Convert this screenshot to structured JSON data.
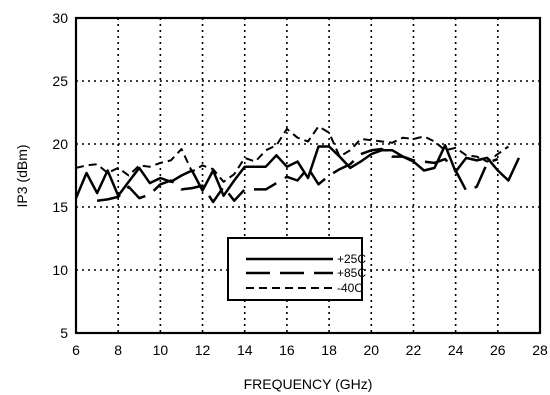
{
  "chart_data": {
    "type": "line",
    "title": "",
    "xlabel": "FREQUENCY (GHz)",
    "ylabel": "IP3 (dBm)",
    "xlim": [
      6,
      28
    ],
    "ylim": [
      5,
      30
    ],
    "xticks": [
      6,
      8,
      10,
      12,
      14,
      16,
      18,
      20,
      22,
      24,
      26,
      28
    ],
    "yticks": [
      5,
      10,
      15,
      20,
      25,
      30
    ],
    "grid": true,
    "legend_position": "lower-center",
    "series": [
      {
        "name": "+25C",
        "line_style": "solid",
        "color": "#000000",
        "points": [
          [
            6,
            15.7
          ],
          [
            6.5,
            17.7
          ],
          [
            7,
            16.1
          ],
          [
            7.5,
            17.9
          ],
          [
            8,
            15.9
          ],
          [
            8.5,
            17.0
          ],
          [
            9,
            18.1
          ],
          [
            9.5,
            16.9
          ],
          [
            10,
            17.3
          ],
          [
            10.5,
            17.0
          ],
          [
            11,
            17.5
          ],
          [
            11.5,
            17.9
          ],
          [
            12,
            16.3
          ],
          [
            12.5,
            17.9
          ],
          [
            13,
            15.9
          ],
          [
            13.5,
            17.1
          ],
          [
            14,
            18.2
          ],
          [
            15,
            18.2
          ],
          [
            15.5,
            19.1
          ],
          [
            16,
            18.2
          ],
          [
            16.5,
            18.6
          ],
          [
            17,
            17.3
          ],
          [
            17.5,
            19.8
          ],
          [
            18,
            19.8
          ],
          [
            18.5,
            19.0
          ],
          [
            19,
            18.1
          ],
          [
            19.5,
            18.6
          ],
          [
            20,
            19.2
          ],
          [
            20.5,
            19.5
          ],
          [
            21,
            19.5
          ],
          [
            21.5,
            19.0
          ],
          [
            22,
            18.6
          ],
          [
            22.5,
            17.9
          ],
          [
            23,
            18.1
          ],
          [
            23.5,
            19.9
          ],
          [
            24,
            17.8
          ],
          [
            24.5,
            18.9
          ],
          [
            25,
            18.7
          ],
          [
            25.5,
            18.9
          ],
          [
            26,
            17.9
          ],
          [
            26.5,
            17.1
          ],
          [
            27,
            18.9
          ]
        ]
      },
      {
        "name": "+85C",
        "line_style": "long-dash",
        "color": "#000000",
        "points": [
          [
            7,
            15.5
          ],
          [
            7.5,
            15.6
          ],
          [
            8,
            15.8
          ],
          [
            8.5,
            16.6
          ],
          [
            9,
            15.7
          ],
          [
            9.5,
            16.0
          ],
          [
            10,
            16.8
          ],
          [
            10.5,
            17.1
          ],
          [
            11,
            16.4
          ],
          [
            11.5,
            16.5
          ],
          [
            12,
            16.7
          ],
          [
            12.5,
            15.4
          ],
          [
            13,
            16.6
          ],
          [
            13.5,
            15.5
          ],
          [
            14,
            16.4
          ],
          [
            14.5,
            16.4
          ],
          [
            15,
            16.4
          ],
          [
            16,
            17.4
          ],
          [
            16.5,
            17.1
          ],
          [
            17,
            18.1
          ],
          [
            17.5,
            16.8
          ],
          [
            18,
            17.5
          ],
          [
            18.5,
            18.0
          ],
          [
            19,
            18.4
          ],
          [
            19.5,
            19.2
          ],
          [
            20,
            19.5
          ],
          [
            20.5,
            19.6
          ],
          [
            21,
            19.0
          ],
          [
            21.5,
            19.0
          ],
          [
            22,
            18.7
          ],
          [
            23,
            18.5
          ],
          [
            23.5,
            18.8
          ],
          [
            24,
            17.9
          ],
          [
            24.5,
            16.3
          ],
          [
            25,
            16.6
          ],
          [
            25.5,
            18.5
          ],
          [
            26,
            18.8
          ]
        ]
      },
      {
        "name": "-40C",
        "line_style": "short-dash",
        "color": "#000000",
        "points": [
          [
            6,
            18.1
          ],
          [
            6.5,
            18.3
          ],
          [
            7,
            18.4
          ],
          [
            7.5,
            17.7
          ],
          [
            8,
            18.1
          ],
          [
            8.5,
            17.5
          ],
          [
            9,
            18.3
          ],
          [
            9.5,
            18.2
          ],
          [
            10,
            18.5
          ],
          [
            10.5,
            18.7
          ],
          [
            11,
            19.6
          ],
          [
            11.5,
            17.8
          ],
          [
            12,
            18.3
          ],
          [
            12.5,
            18.0
          ],
          [
            13,
            17.0
          ],
          [
            13.5,
            17.6
          ],
          [
            14,
            18.9
          ],
          [
            14.5,
            18.6
          ],
          [
            15,
            19.5
          ],
          [
            15.5,
            19.9
          ],
          [
            16,
            21.2
          ],
          [
            16.5,
            20.5
          ],
          [
            17,
            20.2
          ],
          [
            17.5,
            21.4
          ],
          [
            18,
            20.9
          ],
          [
            18.5,
            19.0
          ],
          [
            19,
            19.5
          ],
          [
            19.5,
            20.4
          ],
          [
            20,
            20.3
          ],
          [
            20.5,
            20.2
          ],
          [
            21,
            20.1
          ],
          [
            21.5,
            20.5
          ],
          [
            22,
            20.4
          ],
          [
            22.5,
            20.6
          ],
          [
            23,
            20.2
          ],
          [
            23.5,
            19.5
          ],
          [
            24,
            19.7
          ],
          [
            24.5,
            19.1
          ],
          [
            25,
            19.0
          ],
          [
            25.5,
            18.6
          ],
          [
            26,
            19.2
          ],
          [
            26.5,
            19.8
          ]
        ]
      }
    ]
  }
}
